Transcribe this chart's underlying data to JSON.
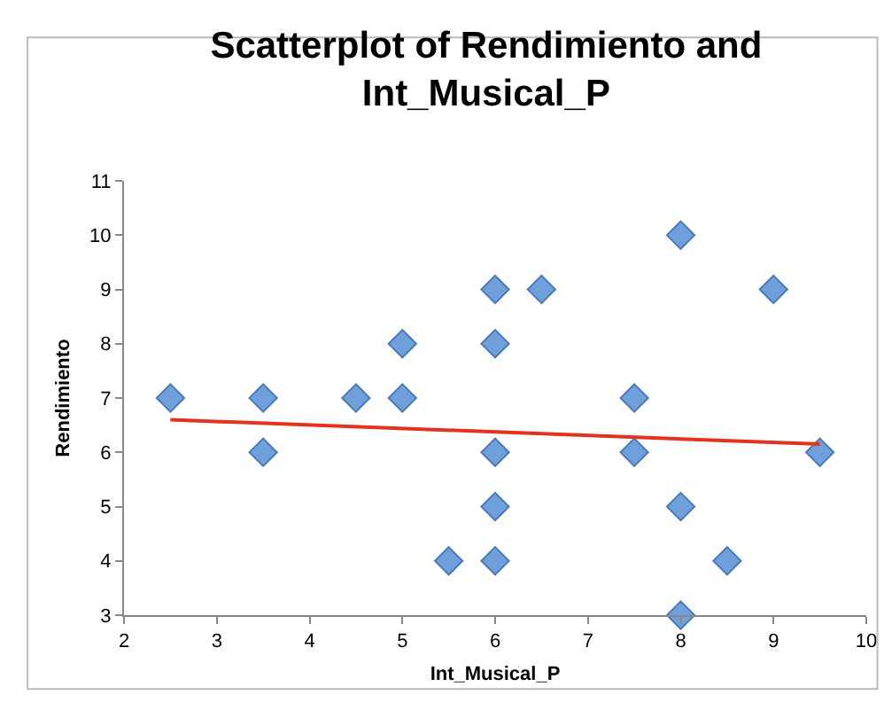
{
  "chart_data": {
    "type": "scatter",
    "title": "Scatterplot of Rendimiento and Int_Musical_P",
    "xlabel": "Int_Musical_P",
    "ylabel": "Rendimiento",
    "xlim": [
      2,
      10
    ],
    "xticks": [
      2,
      3,
      4,
      5,
      6,
      7,
      8,
      9,
      10
    ],
    "ylim": [
      3,
      11
    ],
    "yticks": [
      3,
      4,
      5,
      6,
      7,
      8,
      9,
      10,
      11
    ],
    "grid": false,
    "marker": "diamond",
    "series": [
      {
        "color": "#6fa0dc",
        "x": [
          2.5,
          3.5,
          3.5,
          4.5,
          5,
          5,
          5.5,
          6,
          6,
          6,
          6,
          6,
          6.5,
          7.5,
          7.5,
          8,
          8,
          8,
          8.5,
          9,
          9.5
        ],
        "values": [
          7,
          7,
          6,
          7,
          8,
          7,
          4,
          9,
          8,
          6,
          5,
          4,
          9,
          7,
          6,
          10,
          5,
          3,
          4,
          9,
          6
        ]
      },
      {
        "type": "line",
        "color": "#e3321e",
        "marker": "none",
        "x": [
          2.5,
          9.5
        ],
        "values": [
          6.6,
          6.15
        ]
      }
    ]
  }
}
